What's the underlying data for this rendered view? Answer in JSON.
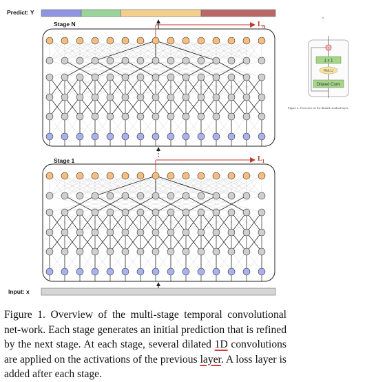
{
  "figure": {
    "predict_label": "Predict: Y",
    "input_label": "Input: x",
    "stages": [
      {
        "title": "Stage N",
        "loss": "L",
        "loss_sub": "N"
      },
      {
        "title": "Stage 1",
        "loss": "L",
        "loss_sub": "1"
      }
    ],
    "predict_colors": [
      "#8f94e0",
      "#9ad49a",
      "#f3cf8e",
      "#b96866"
    ],
    "node_colors": {
      "output": "#f6bd7c",
      "hidden": "#cfcfcf",
      "input": "#a9b1ee"
    },
    "residual_block": {
      "conv1x1": "1 x 1",
      "relu": "ReLU",
      "dilated_conv": "Dilated Conv",
      "plus": "+"
    }
  },
  "side_caption": "Figure 2. Overview of the dilated residual layer.",
  "caption": {
    "part1": "Figure 1. Overview of the multi-stage temporal convolutional net-work. Each stage generates an initial prediction that is refined by the next stage. At each stage, several dilated ",
    "underlined_1": "1D",
    "part2": " convolutions are applied on the activations of the previous ",
    "underlined_2": "layer",
    "part3": ". A loss layer is added after each stage."
  }
}
